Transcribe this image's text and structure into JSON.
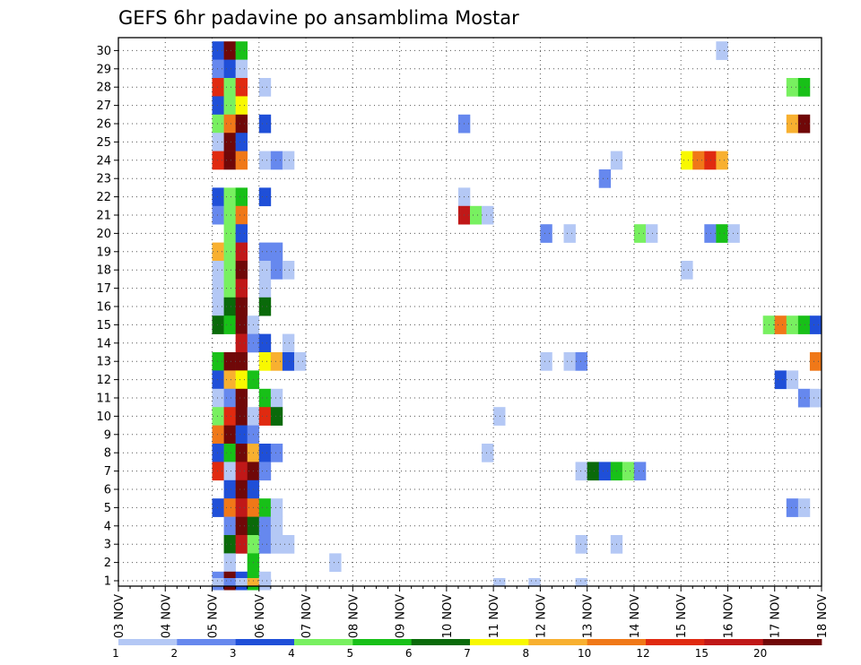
{
  "chart_data": {
    "type": "heatmap",
    "title": "GEFS 6hr padavine po ansamblima Mostar",
    "x_labels": [
      "03 NOV",
      "04 NOV",
      "05 NOV",
      "06 NOV",
      "07 NOV",
      "08 NOV",
      "09 NOV",
      "10 NOV",
      "11 NOV",
      "12 NOV",
      "13 NOV",
      "14 NOV",
      "15 NOV",
      "16 NOV",
      "17 NOV",
      "18 NOV"
    ],
    "y_labels": [
      "1",
      "2",
      "3",
      "4",
      "5",
      "6",
      "7",
      "8",
      "9",
      "10",
      "11",
      "12",
      "13",
      "14",
      "15",
      "16",
      "17",
      "18",
      "19",
      "20",
      "21",
      "22",
      "23",
      "24",
      "25",
      "26",
      "27",
      "28",
      "29",
      "30"
    ],
    "x_range_days": [
      3,
      18
    ],
    "step_hours": 6,
    "grid": true,
    "colorbar": {
      "orientation": "horizontal",
      "placement": "bottom",
      "levels": [
        "1",
        "2",
        "3",
        "4",
        "5",
        "6",
        "7",
        "8",
        "10",
        "12",
        "15",
        "20"
      ],
      "colors": [
        "#b4c8f5",
        "#6688ee",
        "#1f4fd8",
        "#78f060",
        "#18c018",
        "#0a6a0a",
        "#f8f800",
        "#f8b030",
        "#f07818",
        "#e02a10",
        "#c01818",
        "#700808"
      ]
    },
    "cells": [
      {
        "m": 30,
        "d": 5.0,
        "c": 3
      },
      {
        "m": 30,
        "d": 5.25,
        "c": 12
      },
      {
        "m": 30,
        "d": 5.5,
        "c": 5
      },
      {
        "m": 30,
        "d": 15.75,
        "c": 1
      },
      {
        "m": 29,
        "d": 5.0,
        "c": 2
      },
      {
        "m": 29,
        "d": 5.25,
        "c": 3
      },
      {
        "m": 29,
        "d": 5.5,
        "c": 1
      },
      {
        "m": 28,
        "d": 5.0,
        "c": 10
      },
      {
        "m": 28,
        "d": 5.25,
        "c": 4
      },
      {
        "m": 28,
        "d": 5.5,
        "c": 10
      },
      {
        "m": 28,
        "d": 6.0,
        "c": 1
      },
      {
        "m": 28,
        "d": 17.25,
        "c": 4
      },
      {
        "m": 28,
        "d": 17.5,
        "c": 5
      },
      {
        "m": 27,
        "d": 5.0,
        "c": 3
      },
      {
        "m": 27,
        "d": 5.25,
        "c": 4
      },
      {
        "m": 27,
        "d": 5.5,
        "c": 7
      },
      {
        "m": 26,
        "d": 5.0,
        "c": 4
      },
      {
        "m": 26,
        "d": 5.25,
        "c": 9
      },
      {
        "m": 26,
        "d": 5.5,
        "c": 12
      },
      {
        "m": 26,
        "d": 6.0,
        "c": 3
      },
      {
        "m": 26,
        "d": 10.25,
        "c": 2
      },
      {
        "m": 26,
        "d": 17.25,
        "c": 8
      },
      {
        "m": 26,
        "d": 17.5,
        "c": 12
      },
      {
        "m": 25,
        "d": 5.0,
        "c": 1
      },
      {
        "m": 25,
        "d": 5.25,
        "c": 12
      },
      {
        "m": 25,
        "d": 5.5,
        "c": 3
      },
      {
        "m": 24,
        "d": 5.0,
        "c": 10
      },
      {
        "m": 24,
        "d": 5.25,
        "c": 12
      },
      {
        "m": 24,
        "d": 5.5,
        "c": 9
      },
      {
        "m": 24,
        "d": 6.0,
        "c": 1
      },
      {
        "m": 24,
        "d": 6.25,
        "c": 2
      },
      {
        "m": 24,
        "d": 6.5,
        "c": 1
      },
      {
        "m": 24,
        "d": 13.5,
        "c": 1
      },
      {
        "m": 24,
        "d": 15.0,
        "c": 7
      },
      {
        "m": 24,
        "d": 15.25,
        "c": 9
      },
      {
        "m": 24,
        "d": 15.5,
        "c": 10
      },
      {
        "m": 24,
        "d": 15.75,
        "c": 8
      },
      {
        "m": 23,
        "d": 13.25,
        "c": 2
      },
      {
        "m": 22,
        "d": 5.0,
        "c": 3
      },
      {
        "m": 22,
        "d": 5.25,
        "c": 4
      },
      {
        "m": 22,
        "d": 5.5,
        "c": 5
      },
      {
        "m": 22,
        "d": 6.0,
        "c": 3
      },
      {
        "m": 22,
        "d": 10.25,
        "c": 1
      },
      {
        "m": 21,
        "d": 5.0,
        "c": 2
      },
      {
        "m": 21,
        "d": 5.25,
        "c": 4
      },
      {
        "m": 21,
        "d": 5.5,
        "c": 9
      },
      {
        "m": 21,
        "d": 10.25,
        "c": 11
      },
      {
        "m": 21,
        "d": 10.5,
        "c": 4
      },
      {
        "m": 21,
        "d": 10.75,
        "c": 1
      },
      {
        "m": 20,
        "d": 5.25,
        "c": 4
      },
      {
        "m": 20,
        "d": 5.5,
        "c": 3
      },
      {
        "m": 20,
        "d": 12.0,
        "c": 2
      },
      {
        "m": 20,
        "d": 12.5,
        "c": 1
      },
      {
        "m": 20,
        "d": 14.0,
        "c": 4
      },
      {
        "m": 20,
        "d": 14.25,
        "c": 1
      },
      {
        "m": 20,
        "d": 15.5,
        "c": 2
      },
      {
        "m": 20,
        "d": 15.75,
        "c": 5
      },
      {
        "m": 20,
        "d": 16.0,
        "c": 1
      },
      {
        "m": 19,
        "d": 5.0,
        "c": 8
      },
      {
        "m": 19,
        "d": 5.25,
        "c": 4
      },
      {
        "m": 19,
        "d": 5.5,
        "c": 11
      },
      {
        "m": 19,
        "d": 6.0,
        "c": 2
      },
      {
        "m": 19,
        "d": 6.25,
        "c": 2
      },
      {
        "m": 18,
        "d": 5.0,
        "c": 1
      },
      {
        "m": 18,
        "d": 5.25,
        "c": 4
      },
      {
        "m": 18,
        "d": 5.5,
        "c": 12
      },
      {
        "m": 18,
        "d": 6.0,
        "c": 1
      },
      {
        "m": 18,
        "d": 6.25,
        "c": 2
      },
      {
        "m": 18,
        "d": 6.5,
        "c": 1
      },
      {
        "m": 18,
        "d": 15.0,
        "c": 1
      },
      {
        "m": 17,
        "d": 5.0,
        "c": 1
      },
      {
        "m": 17,
        "d": 5.25,
        "c": 4
      },
      {
        "m": 17,
        "d": 5.5,
        "c": 11
      },
      {
        "m": 17,
        "d": 6.0,
        "c": 1
      },
      {
        "m": 16,
        "d": 5.0,
        "c": 1
      },
      {
        "m": 16,
        "d": 5.25,
        "c": 6
      },
      {
        "m": 16,
        "d": 5.5,
        "c": 12
      },
      {
        "m": 16,
        "d": 6.0,
        "c": 6
      },
      {
        "m": 15,
        "d": 5.0,
        "c": 6
      },
      {
        "m": 15,
        "d": 5.25,
        "c": 5
      },
      {
        "m": 15,
        "d": 5.5,
        "c": 12
      },
      {
        "m": 15,
        "d": 5.75,
        "c": 1
      },
      {
        "m": 15,
        "d": 16.75,
        "c": 4
      },
      {
        "m": 15,
        "d": 17.0,
        "c": 9
      },
      {
        "m": 15,
        "d": 17.25,
        "c": 4
      },
      {
        "m": 15,
        "d": 17.5,
        "c": 5
      },
      {
        "m": 15,
        "d": 17.75,
        "c": 3
      },
      {
        "m": 14,
        "d": 5.5,
        "c": 11
      },
      {
        "m": 14,
        "d": 5.75,
        "c": 2
      },
      {
        "m": 14,
        "d": 6.0,
        "c": 3
      },
      {
        "m": 14,
        "d": 6.5,
        "c": 1
      },
      {
        "m": 13,
        "d": 5.0,
        "c": 5
      },
      {
        "m": 13,
        "d": 5.25,
        "c": 12
      },
      {
        "m": 13,
        "d": 5.5,
        "c": 12
      },
      {
        "m": 13,
        "d": 6.0,
        "c": 7
      },
      {
        "m": 13,
        "d": 6.25,
        "c": 8
      },
      {
        "m": 13,
        "d": 6.5,
        "c": 3
      },
      {
        "m": 13,
        "d": 6.75,
        "c": 1
      },
      {
        "m": 13,
        "d": 12.0,
        "c": 1
      },
      {
        "m": 13,
        "d": 12.5,
        "c": 1
      },
      {
        "m": 13,
        "d": 12.75,
        "c": 2
      },
      {
        "m": 13,
        "d": 17.75,
        "c": 9
      },
      {
        "m": 12,
        "d": 5.0,
        "c": 3
      },
      {
        "m": 12,
        "d": 5.25,
        "c": 8
      },
      {
        "m": 12,
        "d": 5.5,
        "c": 7
      },
      {
        "m": 12,
        "d": 5.75,
        "c": 5
      },
      {
        "m": 12,
        "d": 17.0,
        "c": 3
      },
      {
        "m": 12,
        "d": 17.25,
        "c": 1
      },
      {
        "m": 11,
        "d": 5.0,
        "c": 1
      },
      {
        "m": 11,
        "d": 5.25,
        "c": 2
      },
      {
        "m": 11,
        "d": 5.5,
        "c": 12
      },
      {
        "m": 11,
        "d": 6.0,
        "c": 5
      },
      {
        "m": 11,
        "d": 6.25,
        "c": 1
      },
      {
        "m": 11,
        "d": 17.5,
        "c": 2
      },
      {
        "m": 11,
        "d": 17.75,
        "c": 1
      },
      {
        "m": 10,
        "d": 5.0,
        "c": 4
      },
      {
        "m": 10,
        "d": 5.25,
        "c": 10
      },
      {
        "m": 10,
        "d": 5.5,
        "c": 12
      },
      {
        "m": 10,
        "d": 5.75,
        "c": 1
      },
      {
        "m": 10,
        "d": 6.0,
        "c": 10
      },
      {
        "m": 10,
        "d": 6.25,
        "c": 6
      },
      {
        "m": 10,
        "d": 11.0,
        "c": 1
      },
      {
        "m": 9,
        "d": 5.0,
        "c": 9
      },
      {
        "m": 9,
        "d": 5.25,
        "c": 12
      },
      {
        "m": 9,
        "d": 5.5,
        "c": 3
      },
      {
        "m": 9,
        "d": 5.75,
        "c": 2
      },
      {
        "m": 8,
        "d": 5.0,
        "c": 3
      },
      {
        "m": 8,
        "d": 5.25,
        "c": 5
      },
      {
        "m": 8,
        "d": 5.5,
        "c": 12
      },
      {
        "m": 8,
        "d": 5.75,
        "c": 8
      },
      {
        "m": 8,
        "d": 6.0,
        "c": 3
      },
      {
        "m": 8,
        "d": 6.25,
        "c": 2
      },
      {
        "m": 8,
        "d": 10.75,
        "c": 1
      },
      {
        "m": 7,
        "d": 5.0,
        "c": 10
      },
      {
        "m": 7,
        "d": 5.25,
        "c": 1
      },
      {
        "m": 7,
        "d": 5.5,
        "c": 11
      },
      {
        "m": 7,
        "d": 5.75,
        "c": 12
      },
      {
        "m": 7,
        "d": 6.0,
        "c": 2
      },
      {
        "m": 7,
        "d": 12.75,
        "c": 1
      },
      {
        "m": 7,
        "d": 13.0,
        "c": 6
      },
      {
        "m": 7,
        "d": 13.25,
        "c": 3
      },
      {
        "m": 7,
        "d": 13.5,
        "c": 5
      },
      {
        "m": 7,
        "d": 13.75,
        "c": 4
      },
      {
        "m": 7,
        "d": 14.0,
        "c": 2
      },
      {
        "m": 6,
        "d": 5.25,
        "c": 3
      },
      {
        "m": 6,
        "d": 5.5,
        "c": 12
      },
      {
        "m": 6,
        "d": 5.75,
        "c": 3
      },
      {
        "m": 5,
        "d": 5.0,
        "c": 3
      },
      {
        "m": 5,
        "d": 5.25,
        "c": 9
      },
      {
        "m": 5,
        "d": 5.5,
        "c": 11
      },
      {
        "m": 5,
        "d": 5.75,
        "c": 9
      },
      {
        "m": 5,
        "d": 6.0,
        "c": 5
      },
      {
        "m": 5,
        "d": 6.25,
        "c": 1
      },
      {
        "m": 5,
        "d": 17.25,
        "c": 2
      },
      {
        "m": 5,
        "d": 17.5,
        "c": 1
      },
      {
        "m": 4,
        "d": 5.25,
        "c": 2
      },
      {
        "m": 4,
        "d": 5.5,
        "c": 12
      },
      {
        "m": 4,
        "d": 5.75,
        "c": 6
      },
      {
        "m": 4,
        "d": 6.0,
        "c": 2
      },
      {
        "m": 4,
        "d": 6.25,
        "c": 1
      },
      {
        "m": 3,
        "d": 5.25,
        "c": 6
      },
      {
        "m": 3,
        "d": 5.5,
        "c": 11
      },
      {
        "m": 3,
        "d": 5.75,
        "c": 4
      },
      {
        "m": 3,
        "d": 6.0,
        "c": 2
      },
      {
        "m": 3,
        "d": 6.25,
        "c": 1
      },
      {
        "m": 3,
        "d": 6.5,
        "c": 1
      },
      {
        "m": 3,
        "d": 12.75,
        "c": 1
      },
      {
        "m": 3,
        "d": 13.5,
        "c": 1
      },
      {
        "m": 2,
        "d": 5.25,
        "c": 1
      },
      {
        "m": 2,
        "d": 5.75,
        "c": 5
      },
      {
        "m": 2,
        "d": 7.5,
        "c": 1
      },
      {
        "m": 1,
        "d": 5.0,
        "c": 2
      },
      {
        "m": 1,
        "d": 5.25,
        "c": 12
      },
      {
        "m": 1,
        "d": 5.5,
        "c": 3
      },
      {
        "m": 1,
        "d": 5.75,
        "c": 5
      },
      {
        "m": 1,
        "d": 6.0,
        "c": 1
      },
      {
        "m": 0.5,
        "d": 5.0,
        "c": 1
      },
      {
        "m": 0.5,
        "d": 5.25,
        "c": 2
      },
      {
        "m": 0.5,
        "d": 5.5,
        "c": 1
      },
      {
        "m": 0.5,
        "d": 5.75,
        "c": 8
      },
      {
        "m": 0.5,
        "d": 6.0,
        "c": 1
      },
      {
        "m": 0.5,
        "d": 11.0,
        "c": 1
      },
      {
        "m": 0.5,
        "d": 11.75,
        "c": 1
      },
      {
        "m": 0.5,
        "d": 12.75,
        "c": 1
      }
    ]
  }
}
